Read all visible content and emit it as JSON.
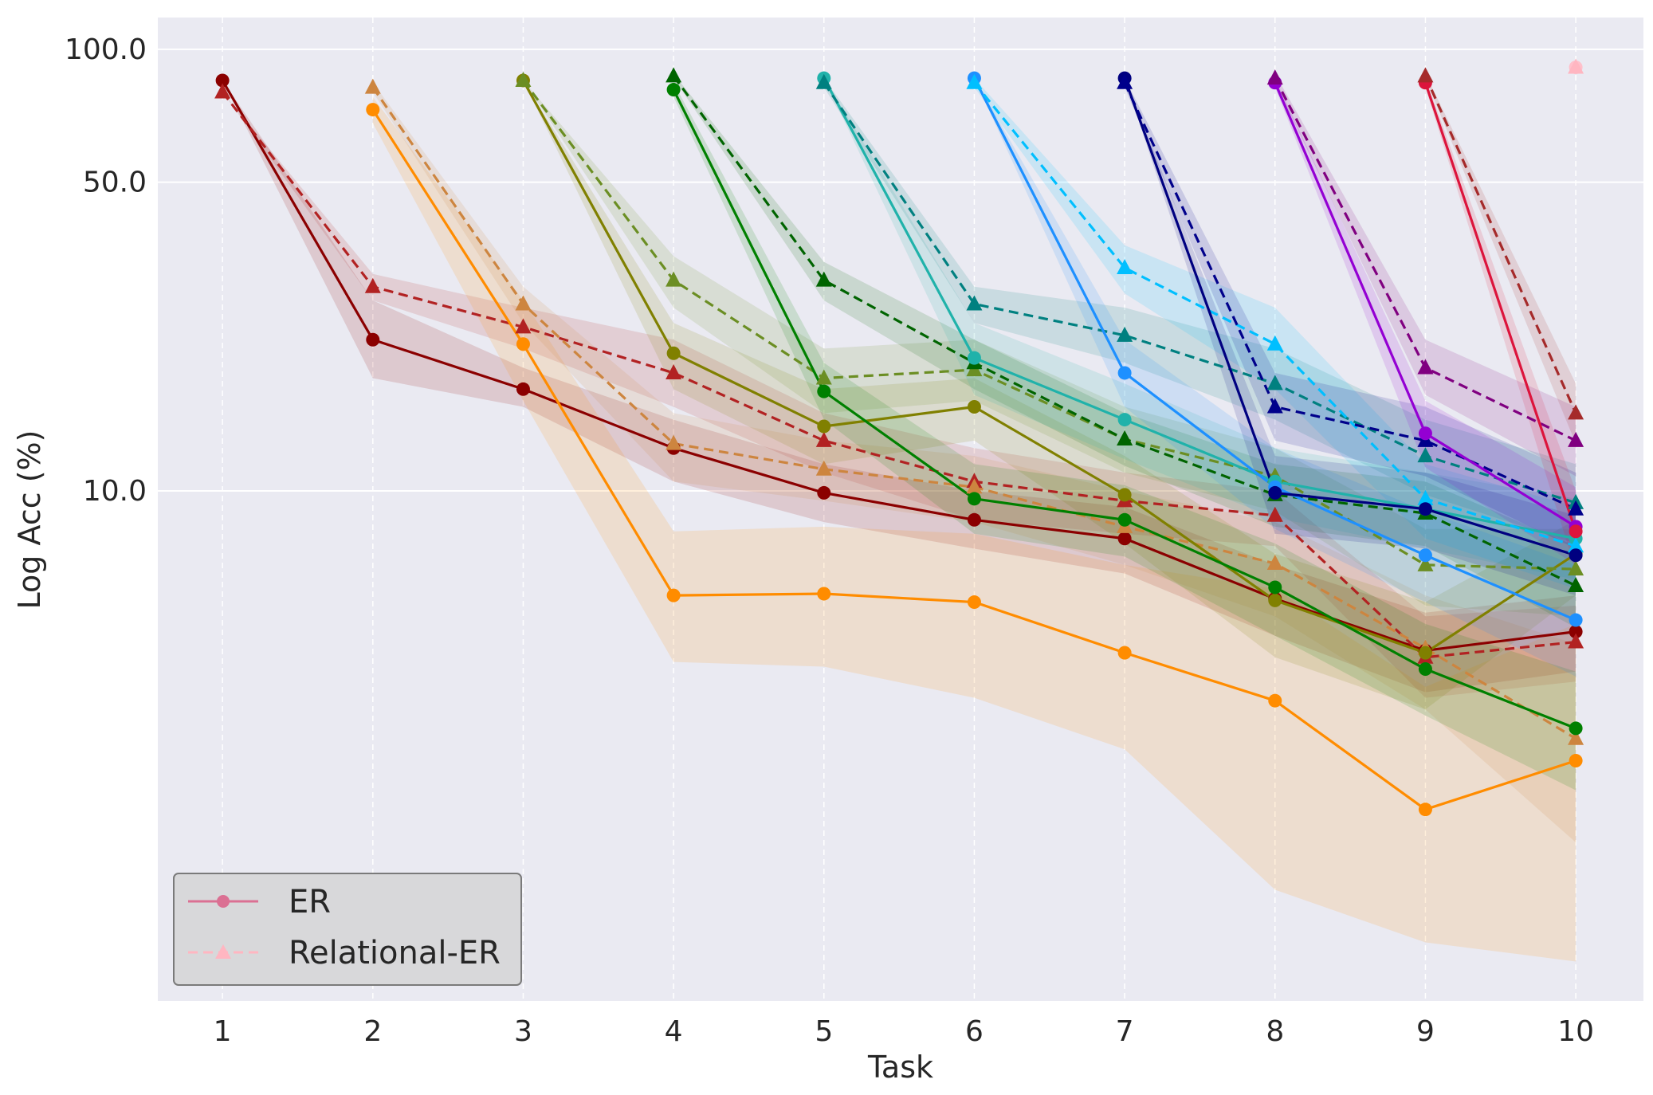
{
  "chart_data": {
    "type": "line",
    "title": "",
    "xlabel": "Task",
    "ylabel": "Log Acc (%)",
    "yscale": "log",
    "xlim": [
      0.57,
      10.45
    ],
    "ylim": [
      0.7,
      118
    ],
    "x_ticks": [
      1,
      2,
      3,
      4,
      5,
      6,
      7,
      8,
      9,
      10
    ],
    "x_tick_labels": [
      "1",
      "2",
      "3",
      "4",
      "5",
      "6",
      "7",
      "8",
      "9",
      "10"
    ],
    "y_ticks": [
      10,
      50,
      100
    ],
    "y_tick_labels": [
      "10.0",
      "50.0",
      "100.0"
    ],
    "grid": true,
    "legend": {
      "position": "bottom-left",
      "entries": [
        {
          "label": "ER",
          "style": "solid",
          "marker": "circle",
          "color": "#db7093"
        },
        {
          "label": "Relational-ER",
          "style": "dashed",
          "marker": "triangle",
          "color": "#ffb6c1"
        }
      ]
    },
    "series": [
      {
        "name": "ER task 1",
        "method": "ER",
        "color": "#8b0000",
        "dash": false,
        "marker": "circle",
        "x": [
          1,
          2,
          3,
          4,
          5,
          6,
          7,
          8,
          9,
          10
        ],
        "y": [
          85,
          22,
          17,
          12.5,
          9.9,
          8.6,
          7.8,
          5.7,
          4.35,
          4.8
        ],
        "band": [
          [
            85,
            85
          ],
          [
            27,
            18
          ],
          [
            19,
            15.5
          ],
          [
            14.5,
            10.5
          ],
          [
            11.5,
            8.5
          ],
          [
            10,
            7.4
          ],
          [
            9.2,
            6.5
          ],
          [
            6.8,
            4.7
          ],
          [
            5.3,
            3.5
          ],
          [
            5.8,
            3.9
          ]
        ]
      },
      {
        "name": "Relational-ER task 1",
        "method": "Relational-ER",
        "color": "#b22222",
        "dash": true,
        "marker": "triangle",
        "x": [
          1,
          2,
          3,
          4,
          5,
          6,
          7,
          8,
          9,
          10
        ],
        "y": [
          80,
          29,
          23.5,
          18.5,
          13,
          10.5,
          9.5,
          8.8,
          4.2,
          4.55
        ],
        "band": [
          [
            80,
            80
          ],
          [
            31,
            27
          ],
          [
            26,
            21
          ],
          [
            22,
            15.5
          ],
          [
            15,
            11
          ],
          [
            12.5,
            8.6
          ],
          [
            11,
            8
          ],
          [
            10,
            7.5
          ],
          [
            5.2,
            3.4
          ],
          [
            5.5,
            3.7
          ]
        ]
      },
      {
        "name": "ER task 2",
        "method": "ER",
        "color": "#ff8c00",
        "dash": false,
        "marker": "circle",
        "x": [
          2,
          3,
          4,
          5,
          6,
          7,
          8,
          9,
          10
        ],
        "y": [
          73,
          21.5,
          5.8,
          5.85,
          5.6,
          4.3,
          3.35,
          1.9,
          2.45
        ],
        "band": [
          [
            78,
            68
          ],
          [
            27,
            16
          ],
          [
            8.1,
            4.1
          ],
          [
            8.3,
            4
          ],
          [
            8,
            3.4
          ],
          [
            6.8,
            2.6
          ],
          [
            6,
            1.25
          ],
          [
            3.6,
            0.95
          ],
          [
            5,
            0.86
          ]
        ]
      },
      {
        "name": "Relational-ER task 2",
        "method": "Relational-ER",
        "color": "#cd853f",
        "dash": true,
        "marker": "triangle",
        "x": [
          2,
          3,
          4,
          5,
          6,
          7,
          8,
          9,
          10
        ],
        "y": [
          82,
          26.5,
          12.8,
          11.2,
          10.2,
          8.3,
          6.85,
          4.4,
          2.75
        ],
        "band": [
          [
            84,
            80
          ],
          [
            29,
            24
          ],
          [
            15,
            10.5
          ],
          [
            13,
            9.5
          ],
          [
            12,
            8.5
          ],
          [
            10,
            6.8
          ],
          [
            8.5,
            5.2
          ],
          [
            5.8,
            3.2
          ],
          [
            4.5,
            1.6
          ]
        ]
      },
      {
        "name": "ER task 3",
        "method": "ER",
        "color": "#808000",
        "dash": false,
        "marker": "circle",
        "x": [
          3,
          4,
          5,
          6,
          7,
          8,
          9,
          10
        ],
        "y": [
          85,
          20.5,
          14,
          15.5,
          9.8,
          5.65,
          4.3,
          7.2
        ],
        "band": [
          [
            85,
            85
          ],
          [
            24,
            17
          ],
          [
            17,
            11.5
          ],
          [
            18,
            13
          ],
          [
            12,
            7.6
          ],
          [
            7.2,
            4.2
          ],
          [
            5.6,
            3.2
          ],
          [
            8.6,
            5.8
          ]
        ]
      },
      {
        "name": "Relational-ER task 3",
        "method": "Relational-ER",
        "color": "#6b8e23",
        "dash": true,
        "marker": "triangle",
        "x": [
          3,
          4,
          5,
          6,
          7,
          8,
          9,
          10
        ],
        "y": [
          85,
          30,
          18,
          18.8,
          13.1,
          10.8,
          6.8,
          6.65
        ],
        "band": [
          [
            85,
            85
          ],
          [
            34,
            26
          ],
          [
            21,
            15
          ],
          [
            22,
            16
          ],
          [
            15.5,
            11
          ],
          [
            12.5,
            9
          ],
          [
            8.2,
            5.5
          ],
          [
            8.2,
            5.2
          ]
        ]
      },
      {
        "name": "ER task 4",
        "method": "ER",
        "color": "#008000",
        "dash": false,
        "marker": "circle",
        "x": [
          4,
          5,
          6,
          7,
          8,
          9,
          10
        ],
        "y": [
          81,
          16.8,
          9.6,
          8.6,
          6.05,
          3.95,
          2.9
        ],
        "band": [
          [
            84,
            78
          ],
          [
            19.5,
            14.5
          ],
          [
            11.5,
            8
          ],
          [
            10.3,
            7.1
          ],
          [
            7.6,
            4.7
          ],
          [
            5,
            3.1
          ],
          [
            3.9,
            2.1
          ]
        ]
      },
      {
        "name": "Relational-ER task 4",
        "method": "Relational-ER",
        "color": "#006400",
        "dash": true,
        "marker": "triangle",
        "x": [
          4,
          5,
          6,
          7,
          8,
          9,
          10
        ],
        "y": [
          87,
          30,
          19.5,
          13.1,
          9.8,
          8.9,
          6.1
        ],
        "band": [
          [
            88,
            86
          ],
          [
            33,
            27
          ],
          [
            22,
            17
          ],
          [
            15,
            11.4
          ],
          [
            11.5,
            8.3
          ],
          [
            10.5,
            7.5
          ],
          [
            7.5,
            4.9
          ]
        ]
      },
      {
        "name": "ER task 5",
        "method": "ER",
        "color": "#20b2aa",
        "dash": false,
        "marker": "circle",
        "x": [
          5,
          6,
          7,
          8,
          9,
          10
        ],
        "y": [
          86,
          20,
          14.5,
          10.5,
          9.1,
          7.8
        ],
        "band": [
          [
            86,
            86
          ],
          [
            24,
            16.5
          ],
          [
            17.5,
            11.8
          ],
          [
            12.5,
            8.7
          ],
          [
            11,
            7.4
          ],
          [
            9.6,
            6.3
          ]
        ]
      },
      {
        "name": "Relational-ER task 5",
        "method": "Relational-ER",
        "color": "#008080",
        "dash": true,
        "marker": "triangle",
        "x": [
          5,
          6,
          7,
          8,
          9,
          10
        ],
        "y": [
          84,
          26.5,
          22.5,
          17.5,
          12,
          9.4
        ],
        "band": [
          [
            86,
            82
          ],
          [
            29,
            24
          ],
          [
            26,
            19.5
          ],
          [
            21,
            14.5
          ],
          [
            14.5,
            9.8
          ],
          [
            11.5,
            7.6
          ]
        ]
      },
      {
        "name": "ER task 6",
        "method": "ER",
        "color": "#1e90ff",
        "dash": false,
        "marker": "circle",
        "x": [
          6,
          7,
          8,
          9,
          10
        ],
        "y": [
          86,
          18.5,
          10.2,
          7.15,
          5.1
        ],
        "band": [
          [
            86,
            86
          ],
          [
            22,
            15.5
          ],
          [
            12.5,
            8.2
          ],
          [
            9,
            5.6
          ],
          [
            6.8,
            3.8
          ]
        ]
      },
      {
        "name": "Relational-ER task 6",
        "method": "Relational-ER",
        "color": "#00bfff",
        "dash": true,
        "marker": "triangle",
        "x": [
          6,
          7,
          8,
          9,
          10
        ],
        "y": [
          84,
          32,
          21.5,
          9.6,
          7.5
        ],
        "band": [
          [
            86,
            82
          ],
          [
            36,
            28
          ],
          [
            26,
            17
          ],
          [
            11.5,
            7.8
          ],
          [
            9.2,
            6
          ]
        ]
      },
      {
        "name": "ER task 7",
        "method": "ER",
        "color": "#000080",
        "dash": false,
        "marker": "circle",
        "x": [
          7,
          8,
          9,
          10
        ],
        "y": [
          86,
          9.9,
          9.1,
          7.15
        ],
        "band": [
          [
            86,
            86
          ],
          [
            12,
            8
          ],
          [
            11,
            7.4
          ],
          [
            8.8,
            5.8
          ]
        ]
      },
      {
        "name": "Relational-ER task 7",
        "method": "Relational-ER",
        "color": "#00008b",
        "dash": true,
        "marker": "triangle",
        "x": [
          7,
          8,
          9,
          10
        ],
        "y": [
          84,
          15.5,
          13,
          9.1
        ],
        "band": [
          [
            86,
            82
          ],
          [
            18.5,
            13
          ],
          [
            15.5,
            10.8
          ],
          [
            11,
            7.4
          ]
        ]
      },
      {
        "name": "ER task 8",
        "method": "ER",
        "color": "#9400d3",
        "dash": false,
        "marker": "circle",
        "x": [
          8,
          9,
          10
        ],
        "y": [
          84,
          13.5,
          8.3
        ],
        "band": [
          [
            86,
            82
          ],
          [
            16,
            11.3
          ],
          [
            10.2,
            6.8
          ]
        ]
      },
      {
        "name": "Relational-ER task 8",
        "method": "Relational-ER",
        "color": "#800080",
        "dash": true,
        "marker": "triangle",
        "x": [
          8,
          9,
          10
        ],
        "y": [
          86,
          19,
          13
        ],
        "band": [
          [
            88,
            84
          ],
          [
            22,
            16.5
          ],
          [
            15.5,
            10.8
          ]
        ]
      },
      {
        "name": "ER task 9",
        "method": "ER",
        "color": "#dc143c",
        "dash": false,
        "marker": "circle",
        "x": [
          9,
          10
        ],
        "y": [
          84,
          8.1
        ],
        "band": [
          [
            86,
            82
          ],
          [
            10,
            6.6
          ]
        ]
      },
      {
        "name": "Relational-ER task 9",
        "method": "Relational-ER",
        "color": "#a52a2a",
        "dash": true,
        "marker": "triangle",
        "x": [
          9,
          10
        ],
        "y": [
          87,
          15
        ],
        "band": [
          [
            88,
            86
          ],
          [
            17.5,
            12.8
          ]
        ]
      },
      {
        "name": "ER task 10",
        "method": "ER",
        "color": "#ffc0cb",
        "dash": false,
        "marker": "circle",
        "x": [
          10
        ],
        "y": [
          91
        ],
        "band": [
          [
            91,
            91
          ]
        ]
      },
      {
        "name": "Relational-ER task 10",
        "method": "Relational-ER",
        "color": "#ffb6c1",
        "dash": true,
        "marker": "triangle",
        "x": [
          10
        ],
        "y": [
          91
        ],
        "band": [
          [
            91,
            91
          ]
        ]
      }
    ]
  }
}
